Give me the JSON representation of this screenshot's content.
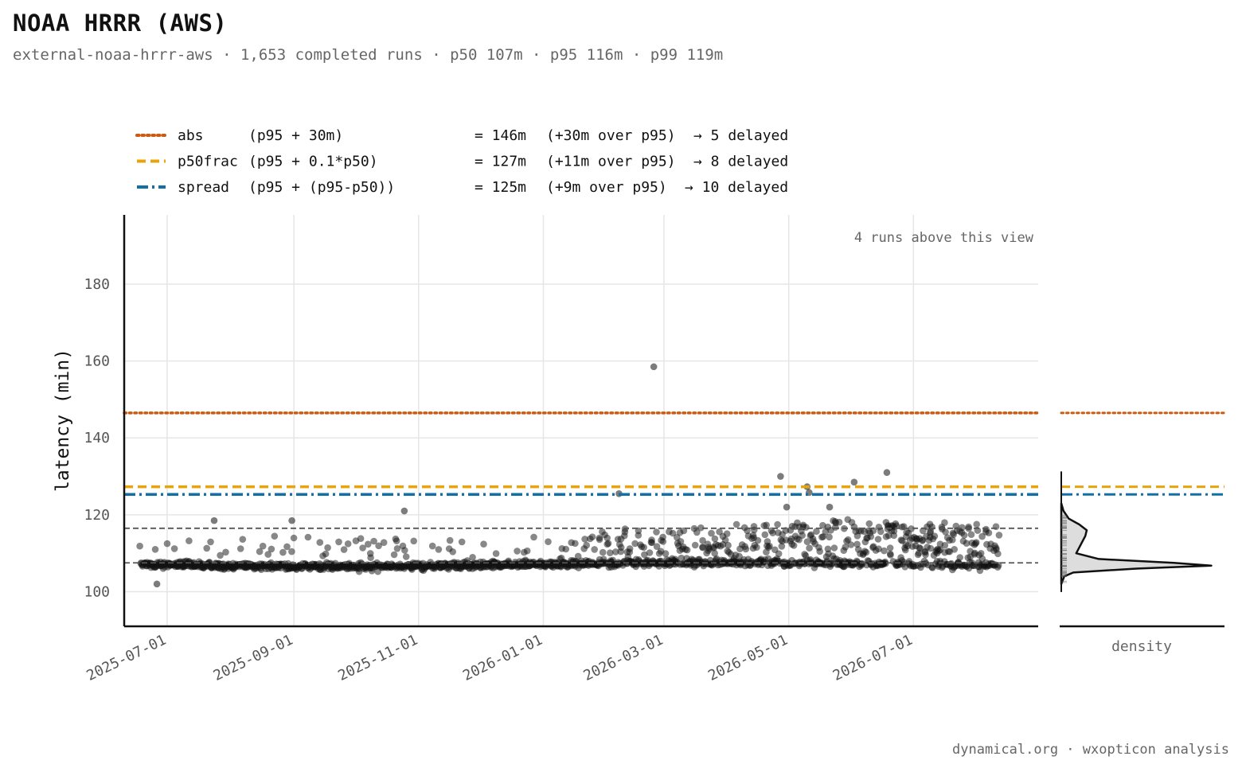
{
  "header": {
    "title": "NOAA HRRR (AWS)",
    "subtitle": "external-noaa-hrrr-aws · 1,653 completed runs · p50 107m · p95 116m · p99 119m"
  },
  "footer": "dynamical.org · wxopticon analysis",
  "colors": {
    "abs": "#cc5a10",
    "p50frac": "#e8a40c",
    "spread": "#1270a6",
    "points": "#111111",
    "grid": "#e6e6e6",
    "percentile": "#555555"
  },
  "chart_data": {
    "type": "scatter",
    "ylabel": "latency (min)",
    "xlabel": "",
    "ylim": [
      91,
      198
    ],
    "yticks": [
      100,
      120,
      140,
      160,
      180
    ],
    "xlim": [
      "2025-06-10",
      "2026-08-31"
    ],
    "xticks": [
      "2025-07-01",
      "2025-09-01",
      "2025-11-01",
      "2026-01-01",
      "2026-03-01",
      "2026-05-01",
      "2026-07-01"
    ],
    "grid": true,
    "annotation": "4 runs above this view",
    "percentile_lines": [
      107.5,
      116.5
    ],
    "thresholds": [
      {
        "key": "abs",
        "style": "dotted",
        "name": "abs",
        "formula": "(p95 + 30m)",
        "value_text": "= 146m",
        "over_text": "(+30m over p95)",
        "delayed_text": "→ 5 delayed",
        "y": 146.5
      },
      {
        "key": "p50frac",
        "style": "dashed",
        "name": "p50frac",
        "formula": "(p95 + 0.1*p50)",
        "value_text": "= 127m",
        "over_text": "(+11m over p95)",
        "delayed_text": "→ 8 delayed",
        "y": 127.3
      },
      {
        "key": "spread",
        "style": "dashdot",
        "name": "spread",
        "formula": "(p95 + (p95-p50))",
        "value_text": "= 125m",
        "over_text": "(+9m over p95)",
        "delayed_text": "→ 10 delayed",
        "y": 125.3
      }
    ],
    "legend_position": "top-left",
    "outliers": [
      {
        "x": "2025-06-26",
        "y": 102
      },
      {
        "x": "2025-10-25",
        "y": 121
      },
      {
        "x": "2026-02-07",
        "y": 125.5
      },
      {
        "x": "2026-02-24",
        "y": 158.5
      },
      {
        "x": "2026-04-27",
        "y": 130
      },
      {
        "x": "2026-04-30",
        "y": 122
      },
      {
        "x": "2026-05-10",
        "y": 127.3
      },
      {
        "x": "2026-05-11",
        "y": 125.8
      },
      {
        "x": "2026-05-21",
        "y": 122
      },
      {
        "x": "2026-06-02",
        "y": 128.5
      },
      {
        "x": "2026-06-18",
        "y": 131
      },
      {
        "x": "2025-08-31",
        "y": 118.5
      },
      {
        "x": "2025-07-24",
        "y": 118.5
      }
    ],
    "density": {
      "xlabel": "density",
      "profile": [
        [
          102,
          0.0
        ],
        [
          104,
          0.02
        ],
        [
          105,
          0.08
        ],
        [
          106,
          0.5
        ],
        [
          106.8,
          1.0
        ],
        [
          107.5,
          0.75
        ],
        [
          108.5,
          0.25
        ],
        [
          110,
          0.1
        ],
        [
          111.5,
          0.12
        ],
        [
          113,
          0.14
        ],
        [
          114.5,
          0.16
        ],
        [
          116,
          0.17
        ],
        [
          117.5,
          0.12
        ],
        [
          119,
          0.05
        ],
        [
          121,
          0.015
        ],
        [
          123,
          0.0
        ]
      ]
    }
  }
}
